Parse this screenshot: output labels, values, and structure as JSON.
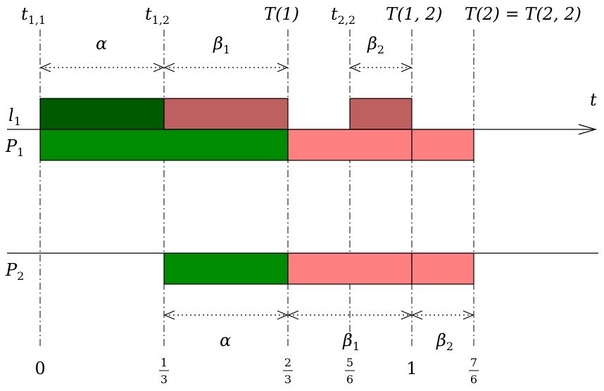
{
  "top_labels": {
    "t11": "t",
    "t11_sub": "1,1",
    "t12": "t",
    "t12_sub": "1,2",
    "T1": "T(1)",
    "t22": "t",
    "t22_sub": "2,2",
    "T12": "T(1, 2)",
    "T2": "T(2) = T(2, 2)"
  },
  "top_intervals": {
    "alpha": "α",
    "beta": "β",
    "beta1_sub": "1",
    "beta2_sub": "2"
  },
  "rows": {
    "l1": "l",
    "l1_sub": "1",
    "P1": "P",
    "P1_sub": "1",
    "P2": "P",
    "P2_sub": "2",
    "axis_label": "t"
  },
  "bottom_intervals": {
    "alpha": "α",
    "beta": "β",
    "beta1_sub": "1",
    "beta2_sub": "2"
  },
  "ticks": {
    "zero": "0",
    "third_num": "1",
    "third_den": "3",
    "twothird_num": "2",
    "twothird_den": "3",
    "fivesixth_num": "5",
    "fivesixth_den": "6",
    "one": "1",
    "sevensixth_num": "7",
    "sevensixth_den": "6"
  },
  "colors": {
    "dark_green": "#005a00",
    "green": "#008c00",
    "dark_red": "#bf6060",
    "light_red": "#ff8080"
  }
}
